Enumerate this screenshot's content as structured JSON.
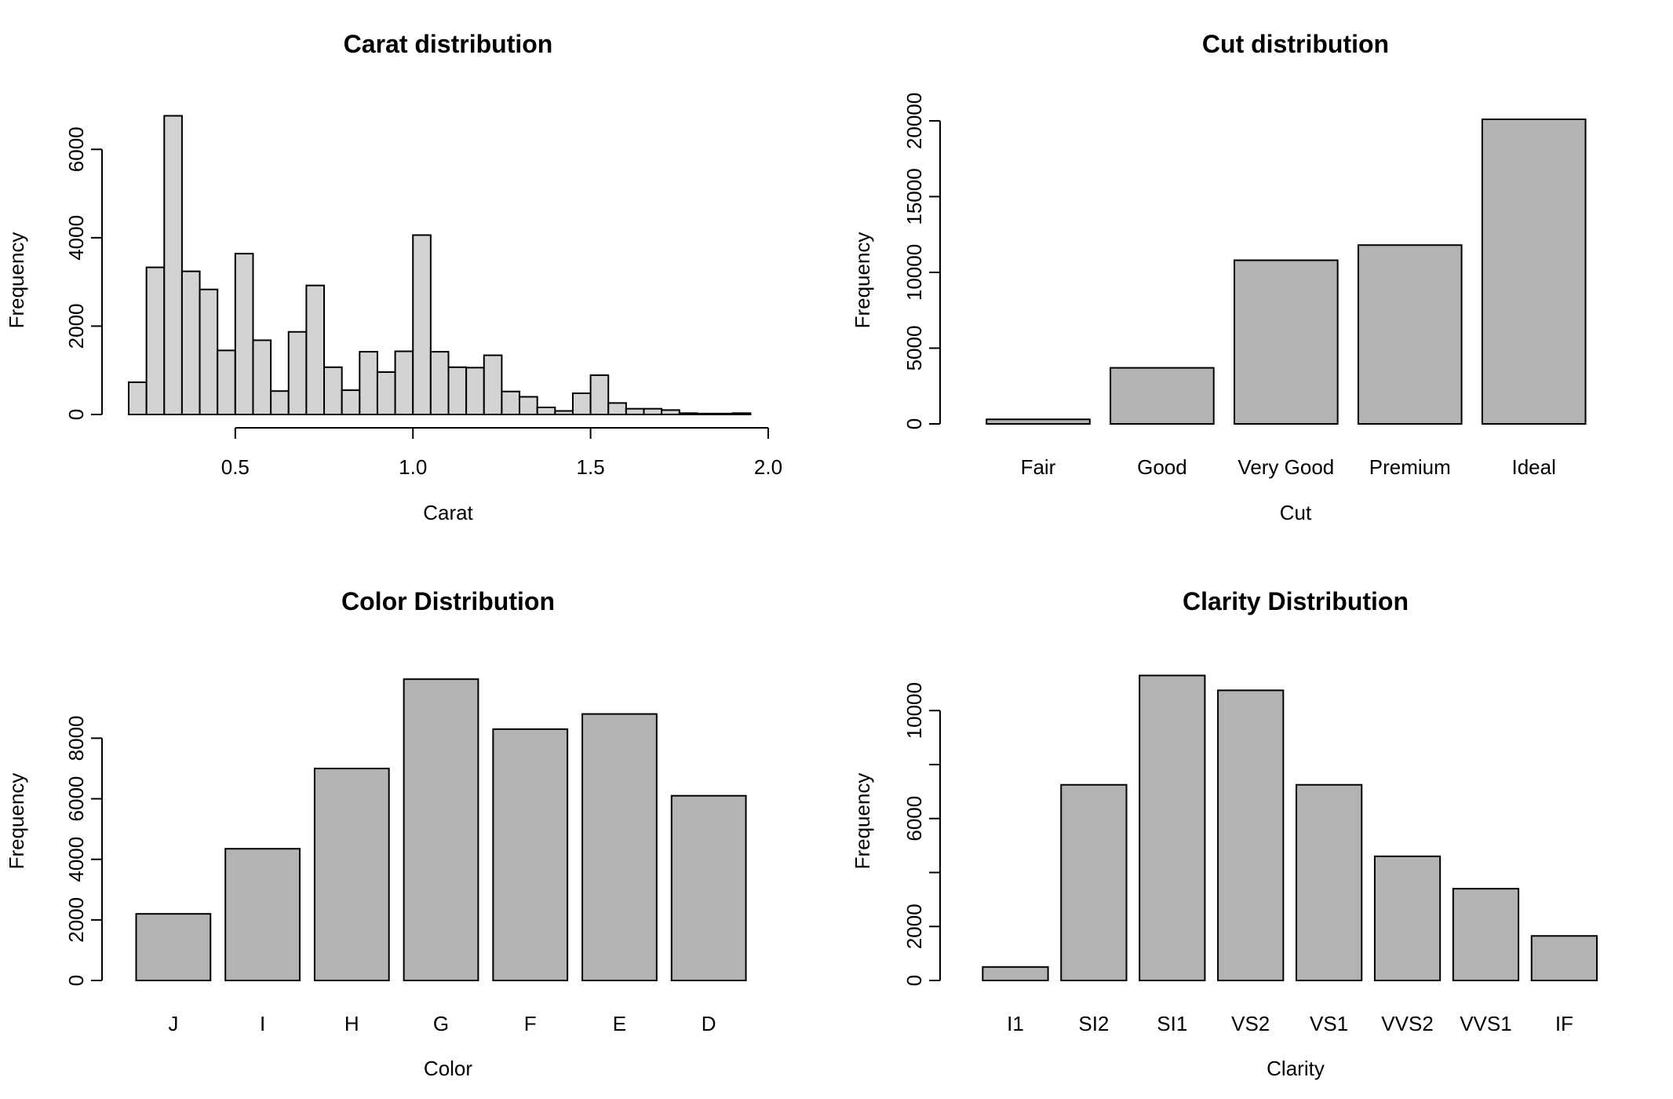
{
  "chart_data": [
    {
      "type": "bar",
      "subtype": "histogram",
      "title": "Carat distribution",
      "xlabel": "Carat",
      "ylabel": "Frequency",
      "xlim": [
        0.2,
        2.0
      ],
      "ylim": [
        0,
        7000
      ],
      "xticks": [
        0.5,
        1.0,
        1.5,
        2.0
      ],
      "xtick_labels": [
        "0.5",
        "1.0",
        "1.5",
        "2.0"
      ],
      "yticks": [
        0,
        2000,
        4000,
        6000
      ],
      "ytick_labels": [
        "0",
        "2000",
        "4000",
        "6000"
      ],
      "bin_width": 0.05,
      "bin_start": 0.2,
      "values": [
        730,
        3330,
        6760,
        3240,
        2830,
        1450,
        3640,
        1680,
        530,
        1870,
        2920,
        1070,
        550,
        1420,
        960,
        1430,
        4060,
        1420,
        1070,
        1060,
        1340,
        520,
        400,
        160,
        80,
        480,
        890,
        260,
        130,
        130,
        100,
        30,
        20,
        20,
        30
      ],
      "fill": "#d3d3d3",
      "grid": false,
      "legend": "none"
    },
    {
      "type": "bar",
      "title": "Cut distribution",
      "xlabel": "Cut",
      "ylabel": "Frequency",
      "ylim": [
        0,
        21551
      ],
      "yticks": [
        0,
        5000,
        10000,
        15000,
        20000
      ],
      "ytick_labels": [
        "0",
        "5000",
        "10000",
        "15000",
        "20000"
      ],
      "categories": [
        "Fair",
        "Good",
        "Very Good",
        "Premium",
        "Ideal"
      ],
      "values": [
        300,
        3700,
        10800,
        11800,
        20100
      ],
      "fill": "#b3b3b3",
      "grid": false,
      "legend": "none"
    },
    {
      "type": "bar",
      "title": "Color Distribution",
      "xlabel": "Color",
      "ylabel": "Frequency",
      "ylim": [
        0,
        10810
      ],
      "yticks": [
        0,
        2000,
        4000,
        6000,
        8000
      ],
      "ytick_labels": [
        "0",
        "2000",
        "4000",
        "6000",
        "8000"
      ],
      "categories": [
        "J",
        "I",
        "H",
        "G",
        "F",
        "E",
        "D"
      ],
      "values": [
        2200,
        4350,
        7000,
        9950,
        8300,
        8800,
        6100
      ],
      "fill": "#b3b3b3",
      "grid": false,
      "legend": "none"
    },
    {
      "type": "bar",
      "title": "Clarity Distribution",
      "xlabel": "Clarity",
      "ylabel": "Frequency",
      "ylim": [
        0,
        12100
      ],
      "yticks": [
        0,
        2000,
        6000,
        10000
      ],
      "ytick_labels": [
        "0",
        "2000",
        "6000",
        "10000"
      ],
      "minor_yticks": [
        4000,
        8000
      ],
      "categories": [
        "I1",
        "SI2",
        "SI1",
        "VS2",
        "VS1",
        "VVS2",
        "VVS1",
        "IF"
      ],
      "values": [
        500,
        7250,
        11300,
        10750,
        7250,
        4600,
        3400,
        1650
      ],
      "fill": "#b3b3b3",
      "grid": false,
      "legend": "none"
    }
  ]
}
